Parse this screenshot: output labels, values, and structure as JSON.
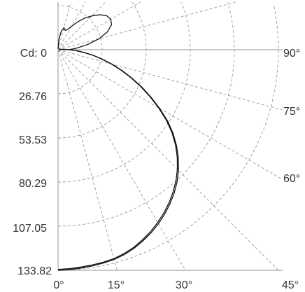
{
  "chart_data": {
    "type": "polar",
    "radial_label_prefix": "Cd: ",
    "radial_ticks": [
      "0",
      "26.76",
      "53.53",
      "80.29",
      "107.05",
      "133.82"
    ],
    "radial_tick_values": [
      0,
      26.76,
      53.53,
      80.29,
      107.05,
      133.82
    ],
    "angle_ticks_bottom": [
      "0°",
      "15°",
      "30°",
      "45°"
    ],
    "angle_ticks_right": [
      "60°",
      "75°",
      "90°"
    ],
    "angle_tick_values_bottom": [
      0,
      15,
      30,
      45
    ],
    "angle_tick_values_right": [
      60,
      75,
      90
    ],
    "radial_max": 133.82,
    "grid": true,
    "colors": {
      "grid": "#9a9a9a",
      "frame": "#a8a8a8",
      "curve": "#111111",
      "text": "#333333"
    },
    "series": [
      {
        "angles": [
          0,
          3,
          6,
          9,
          12,
          15,
          18,
          21,
          24,
          27,
          30,
          33,
          36,
          39,
          42,
          45,
          48,
          51,
          54,
          57,
          60,
          63,
          66,
          69,
          72,
          75,
          78,
          81,
          84,
          87,
          90,
          93,
          96,
          100,
          105,
          112
        ],
        "values": [
          133.3,
          133.0,
          132.6,
          132.2,
          131.8,
          131.2,
          130.0,
          128.4,
          126.2,
          123.8,
          121.0,
          118.0,
          114.7,
          111.0,
          107.0,
          102.5,
          97.4,
          91.8,
          85.5,
          78.4,
          70.5,
          62.6,
          54.9,
          47.4,
          40.3,
          33.4,
          27.0,
          21.2,
          15.6,
          11.0,
          6.8,
          3.6,
          2.0,
          1.2,
          0.8,
          0.6
        ]
      },
      {
        "angles": [
          0,
          3,
          6,
          9,
          12,
          15,
          18,
          21,
          24,
          27,
          30,
          33,
          36,
          39,
          42,
          45,
          48,
          51,
          54,
          57,
          60,
          63,
          66,
          69,
          72,
          75,
          78,
          81,
          84,
          87,
          90,
          93,
          96,
          100,
          105,
          112
        ],
        "values": [
          133.8,
          133.6,
          133.2,
          132.8,
          132.3,
          131.7,
          130.6,
          129.0,
          126.9,
          124.6,
          121.9,
          118.9,
          115.6,
          112.0,
          108.0,
          103.4,
          98.3,
          92.6,
          86.3,
          79.3,
          71.2,
          63.3,
          55.6,
          48.0,
          40.9,
          34.0,
          27.5,
          21.6,
          16.0,
          11.3,
          7.0,
          3.8,
          2.1,
          1.3,
          0.9,
          0.7
        ]
      },
      {
        "angles": [
          90,
          95,
          100,
          105,
          110,
          115,
          120,
          125,
          130,
          135,
          140,
          145,
          150,
          155,
          160,
          165,
          170,
          175,
          180
        ],
        "values": [
          6.8,
          11.5,
          18.2,
          25.8,
          32.0,
          35.8,
          37.0,
          36.0,
          33.0,
          29.0,
          25.0,
          20.5,
          16.5,
          13.5,
          12.5,
          13.8,
          11.5,
          6.5,
          0.5
        ]
      }
    ]
  }
}
